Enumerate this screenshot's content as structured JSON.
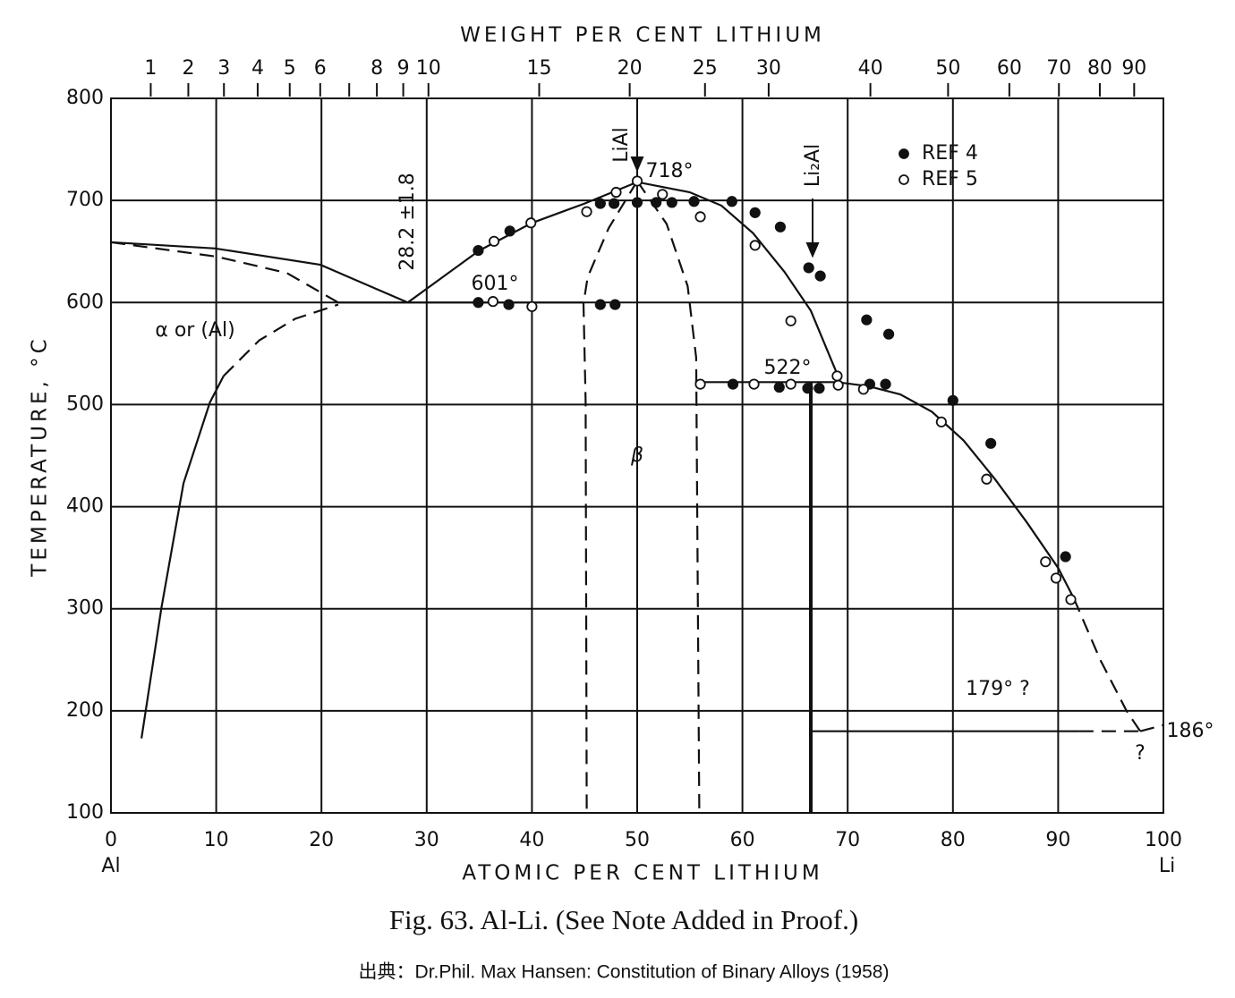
{
  "chart_data": {
    "type": "scatter",
    "top_axis_label": "WEIGHT PER CENT LITHIUM",
    "x_label": "ATOMIC PER CENT LITHIUM",
    "y_label": "TEMPERATURE, °C",
    "x_end_labels": [
      "Al",
      "Li"
    ],
    "caption": "Fig. 63. Al-Li. (See Note Added in Proof.)",
    "source": "出典：Dr.Phil. Max Hansen: Constitution of Binary Alloys (1958)",
    "xlim": [
      0,
      100
    ],
    "xticks": [
      0,
      10,
      20,
      30,
      40,
      50,
      60,
      70,
      80,
      90,
      100
    ],
    "ylim": [
      100,
      800
    ],
    "yticks": [
      100,
      200,
      300,
      400,
      500,
      600,
      700,
      800
    ],
    "x2ticks": [
      1,
      2,
      3,
      4,
      5,
      6,
      {
        "value": 7,
        "label": null
      },
      8,
      9,
      10,
      15,
      20,
      25,
      30,
      40,
      50,
      60,
      70,
      80,
      90
    ],
    "grid": true,
    "series": [
      {
        "name": "REF 4",
        "marker": "filled",
        "color": "#111111",
        "x": [
          34.9,
          37.9,
          46.5,
          47.8,
          50.0,
          51.8,
          53.3,
          55.4,
          59.0,
          61.2,
          63.6,
          66.3,
          67.4,
          34.9,
          37.8,
          46.5,
          47.9,
          71.8,
          73.9,
          72.1,
          73.6,
          59.1,
          63.5,
          66.2,
          67.3,
          80.0,
          83.6,
          90.7
        ],
        "y": [
          651,
          670,
          697,
          697,
          698,
          698,
          698,
          699,
          699,
          688,
          674,
          634,
          626,
          600,
          598,
          598,
          598,
          583,
          569,
          520,
          520,
          520,
          517,
          516,
          516,
          504,
          462,
          351
        ]
      },
      {
        "name": "REF 5",
        "marker": "open",
        "color": "#111111",
        "x": [
          36.4,
          39.9,
          40.0,
          36.3,
          45.2,
          48.0,
          50.0,
          52.4,
          56.0,
          61.2,
          64.6,
          69.0,
          69.1,
          71.5,
          56.0,
          61.1,
          64.6,
          78.9,
          83.2,
          88.8,
          89.8,
          91.2
        ],
        "y": [
          660,
          678,
          596,
          601,
          689,
          708,
          719,
          706,
          684,
          656,
          582,
          528,
          519,
          515,
          520,
          520,
          520,
          483,
          427,
          346,
          330,
          309
        ]
      }
    ],
    "boundaries": [
      {
        "dash": false,
        "x": [
          0,
          9.9,
          19.9,
          28.2
        ],
        "y": [
          659,
          653,
          637,
          600
        ]
      },
      {
        "dash": false,
        "x": [
          28.2,
          35,
          40,
          45,
          50,
          55,
          58,
          61,
          64,
          66.5,
          69
        ],
        "y": [
          600,
          651,
          678,
          697,
          718,
          708,
          695,
          668,
          630,
          592,
          530
        ]
      },
      {
        "dash": false,
        "x": [
          21.6,
          44.9
        ],
        "y": [
          600,
          600
        ]
      },
      {
        "dash": false,
        "x": [
          55.5,
          69,
          72,
          75,
          78,
          81,
          84,
          87,
          90,
          91.5
        ],
        "y": [
          522,
          522,
          518,
          510,
          493,
          465,
          427,
          385,
          340,
          310
        ]
      },
      {
        "dash": false,
        "x": [
          2.9,
          4.8,
          6.9,
          9.4,
          10.7
        ],
        "y": [
          173,
          301,
          423,
          502,
          528
        ]
      },
      {
        "dash": true,
        "x": [
          10.7,
          14.1,
          17.5,
          21.6
        ],
        "y": [
          528,
          563,
          584,
          598
        ]
      },
      {
        "dash": true,
        "x": [
          0,
          10,
          16.7,
          21.6
        ],
        "y": [
          659,
          645,
          629,
          600
        ]
      },
      {
        "dash": true,
        "x": [
          50,
          47.3,
          45.3,
          44.9,
          45.1,
          45.2
        ],
        "y": [
          719,
          673,
          625,
          599,
          503,
          100
        ]
      },
      {
        "dash": true,
        "x": [
          50,
          52.8,
          54.8,
          55.6,
          55.9
        ],
        "y": [
          719,
          677,
          616,
          546,
          100
        ]
      },
      {
        "dash": false,
        "x": [
          66.5,
          66.5
        ],
        "y": [
          522,
          100
        ]
      },
      {
        "dash": false,
        "x": [
          66.5,
          92
        ],
        "y": [
          180,
          180
        ]
      },
      {
        "dash": true,
        "x": [
          92,
          97.8
        ],
        "y": [
          180,
          180
        ]
      },
      {
        "dash": true,
        "x": [
          91.5,
          94,
          96.5,
          97.8
        ],
        "y": [
          310,
          250,
          200,
          180
        ]
      },
      {
        "dash": true,
        "x": [
          97.8,
          100
        ],
        "y": [
          180,
          186
        ]
      }
    ],
    "annotations": [
      "718°",
      "601°",
      "522°",
      "186°",
      "179° ?",
      "?",
      "28.2 ±1.8",
      "LiAl",
      "Li₂Al",
      "β",
      "α or (Al)"
    ]
  }
}
